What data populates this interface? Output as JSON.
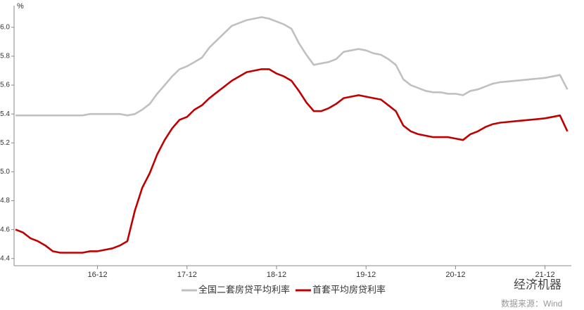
{
  "chart_data": {
    "type": "line",
    "y_unit": "%",
    "categories": [
      null,
      null,
      null,
      null,
      null,
      null,
      null,
      null,
      null,
      null,
      null,
      "16-12",
      null,
      null,
      null,
      null,
      null,
      null,
      null,
      null,
      null,
      null,
      null,
      "17-12",
      null,
      null,
      null,
      null,
      null,
      null,
      null,
      null,
      null,
      null,
      null,
      "18-12",
      null,
      null,
      null,
      null,
      null,
      null,
      null,
      null,
      null,
      null,
      null,
      "19-12",
      null,
      null,
      null,
      null,
      null,
      null,
      null,
      null,
      null,
      null,
      null,
      "20-12",
      null,
      null,
      null,
      null,
      null,
      null,
      null,
      null,
      null,
      null,
      null,
      "21-12",
      null,
      null,
      null
    ],
    "series": [
      {
        "name": "全国二套房贷平均利率",
        "color": "#c0c0c0",
        "values": [
          5.39,
          5.39,
          5.39,
          5.39,
          5.39,
          5.39,
          5.39,
          5.39,
          5.39,
          5.39,
          5.4,
          5.4,
          5.4,
          5.4,
          5.4,
          5.39,
          5.4,
          5.43,
          5.47,
          5.54,
          5.6,
          5.66,
          5.71,
          5.73,
          5.76,
          5.79,
          5.86,
          5.91,
          5.96,
          6.01,
          6.03,
          6.05,
          6.06,
          6.07,
          6.06,
          6.04,
          6.02,
          5.99,
          5.89,
          5.81,
          5.74,
          5.75,
          5.76,
          5.78,
          5.83,
          5.84,
          5.85,
          5.84,
          5.82,
          5.81,
          5.78,
          5.74,
          5.64,
          5.6,
          5.58,
          5.56,
          5.55,
          5.55,
          5.54,
          5.54,
          5.53,
          5.56,
          5.57,
          5.59,
          5.61,
          5.62,
          5.625,
          5.63,
          5.635,
          5.64,
          5.645,
          5.65,
          5.66,
          5.67,
          5.57
        ]
      },
      {
        "name": "首套平均房贷利率",
        "color": "#c00000",
        "values": [
          4.6,
          4.58,
          4.54,
          4.52,
          4.49,
          4.45,
          4.44,
          4.44,
          4.44,
          4.44,
          4.45,
          4.45,
          4.46,
          4.47,
          4.49,
          4.52,
          4.73,
          4.89,
          4.99,
          5.12,
          5.22,
          5.3,
          5.36,
          5.38,
          5.43,
          5.46,
          5.51,
          5.55,
          5.59,
          5.63,
          5.66,
          5.69,
          5.7,
          5.71,
          5.71,
          5.68,
          5.66,
          5.63,
          5.56,
          5.48,
          5.42,
          5.42,
          5.44,
          5.47,
          5.51,
          5.52,
          5.53,
          5.52,
          5.51,
          5.5,
          5.46,
          5.42,
          5.32,
          5.28,
          5.26,
          5.25,
          5.24,
          5.24,
          5.24,
          5.23,
          5.22,
          5.26,
          5.28,
          5.31,
          5.33,
          5.34,
          5.345,
          5.35,
          5.355,
          5.36,
          5.365,
          5.37,
          5.38,
          5.39,
          5.28
        ]
      }
    ],
    "ylim": [
      4.35,
      6.15
    ],
    "yticks": [
      4.4,
      4.6,
      4.8,
      {
        "value": 5.0,
        "label": "5.0"
      },
      5.2,
      5.4,
      5.6,
      5.8,
      {
        "value": 6.0,
        "label": "6.0"
      }
    ],
    "grid": false,
    "legend": "bottom",
    "watermark": "经济机器",
    "source": "数据来源：Wind"
  }
}
